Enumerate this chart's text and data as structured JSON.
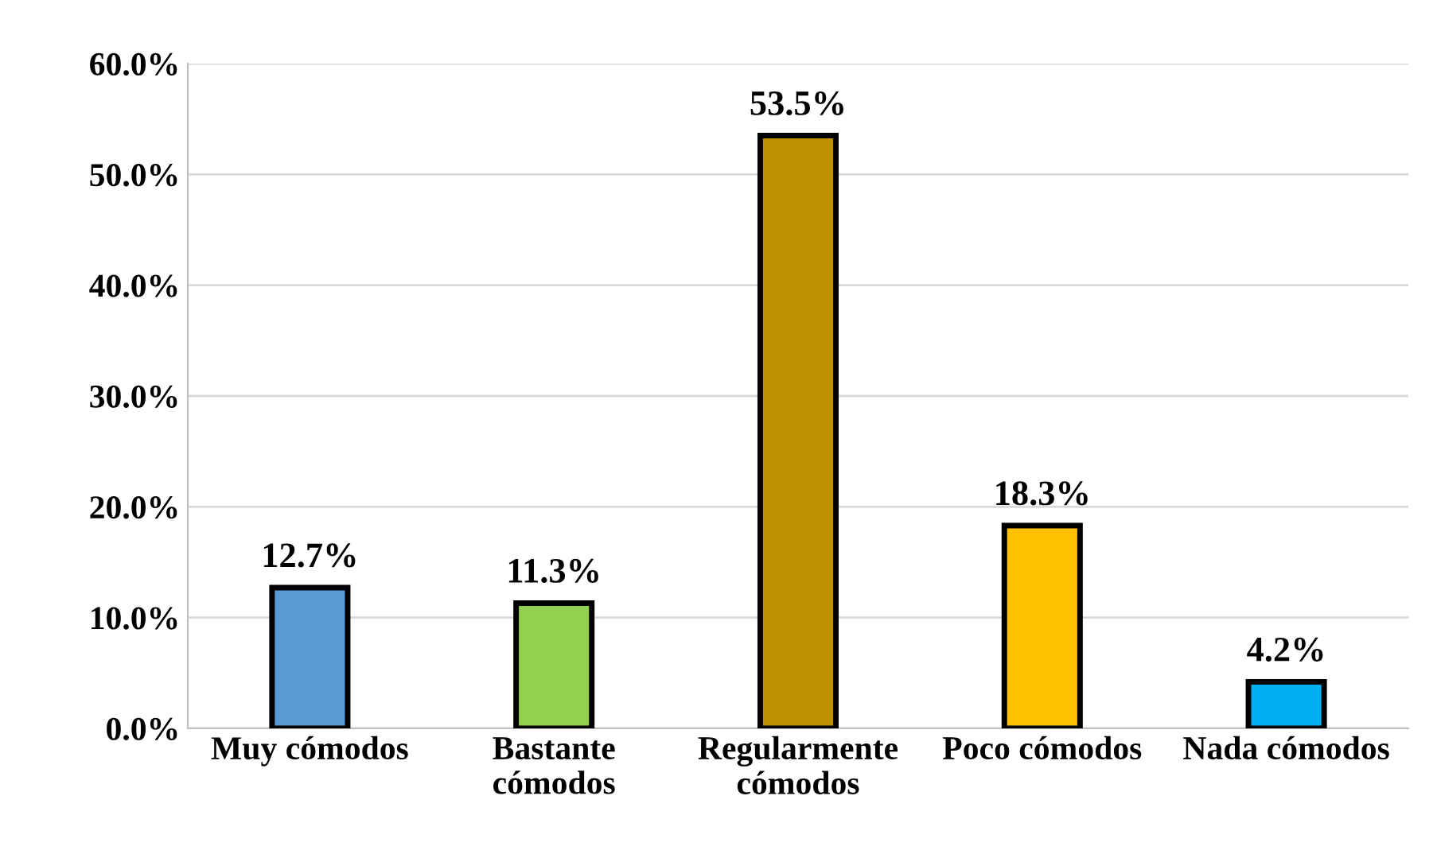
{
  "chart_data": {
    "type": "bar",
    "categories": [
      "Muy cómodos",
      "Bastante\ncómodos",
      "Regularmente\ncómodos",
      "Poco cómodos",
      "Nada cómodos"
    ],
    "values": [
      12.7,
      11.3,
      53.5,
      18.3,
      4.2
    ],
    "colors": [
      "#5b9bd5",
      "#92d050",
      "#bf9000",
      "#ffc000",
      "#00b0f0"
    ],
    "value_labels": [
      "12.7%",
      "11.3%",
      "53.5%",
      "18.3%",
      "4.2%"
    ],
    "ylim": [
      0,
      60
    ],
    "yticks": [
      {
        "value": 0,
        "label": "0.0%"
      },
      {
        "value": 10,
        "label": "10.0%"
      },
      {
        "value": 20,
        "label": "20.0%"
      },
      {
        "value": 30,
        "label": "30.0%"
      },
      {
        "value": 40,
        "label": "40.0%"
      },
      {
        "value": 50,
        "label": "50.0%"
      },
      {
        "value": 60,
        "label": "60.0%"
      }
    ],
    "grid": "y",
    "legend": false
  }
}
